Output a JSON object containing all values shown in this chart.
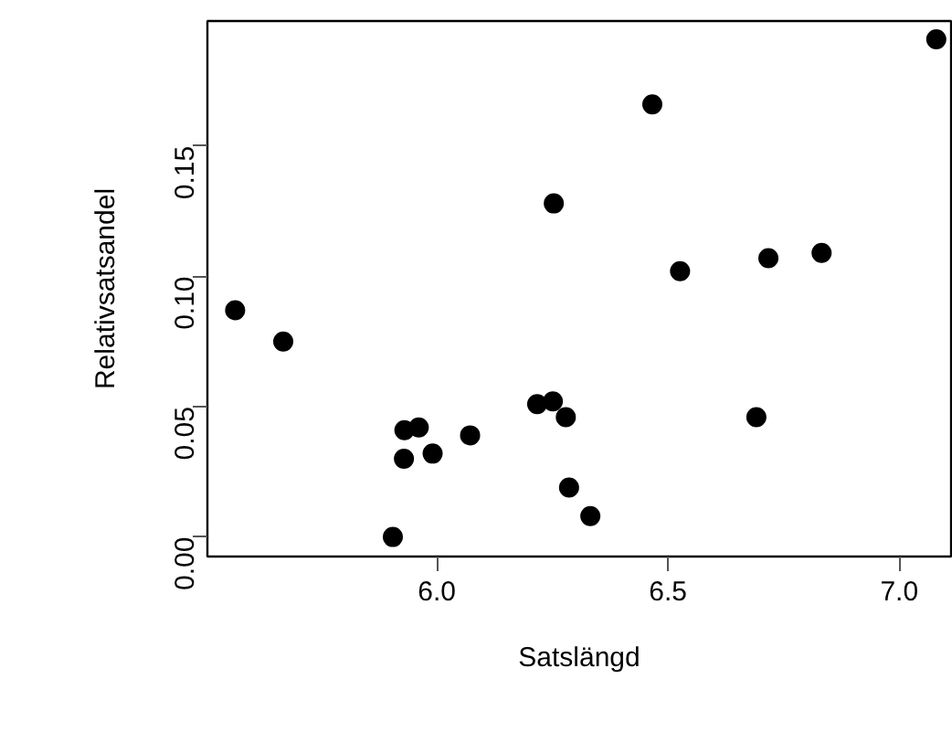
{
  "chart_data": {
    "type": "scatter",
    "xlabel": "Satslängd",
    "ylabel": "Relativsatsandel",
    "x": [
      5.564,
      5.668,
      5.905,
      5.93,
      5.961,
      5.929,
      5.991,
      6.072,
      6.217,
      6.251,
      6.279,
      6.253,
      6.286,
      6.332,
      6.466,
      6.526,
      6.691,
      6.717,
      6.832,
      7.08
    ],
    "series": [
      {
        "color": "#000000",
        "values": [
          0.087,
          0.075,
          0.0,
          0.041,
          0.042,
          0.03,
          0.032,
          0.039,
          0.051,
          0.052,
          0.046,
          0.128,
          0.019,
          0.008,
          0.166,
          0.102,
          0.046,
          0.107,
          0.109,
          0.191
        ]
      }
    ],
    "xlim": [
      5.504,
      7.112
    ],
    "ylim": [
      -0.0075,
      0.198
    ],
    "xticks": [
      {
        "value": 6.0,
        "label": "6.0"
      },
      {
        "value": 6.5,
        "label": "6.5"
      },
      {
        "value": 7.0,
        "label": "7.0"
      }
    ],
    "yticks": [
      {
        "value": 0.0,
        "label": "0.00"
      },
      {
        "value": 0.05,
        "label": "0.05"
      },
      {
        "value": 0.1,
        "label": "0.10"
      },
      {
        "value": 0.15,
        "label": "0.15"
      }
    ],
    "marker": "circle",
    "grid": false
  }
}
